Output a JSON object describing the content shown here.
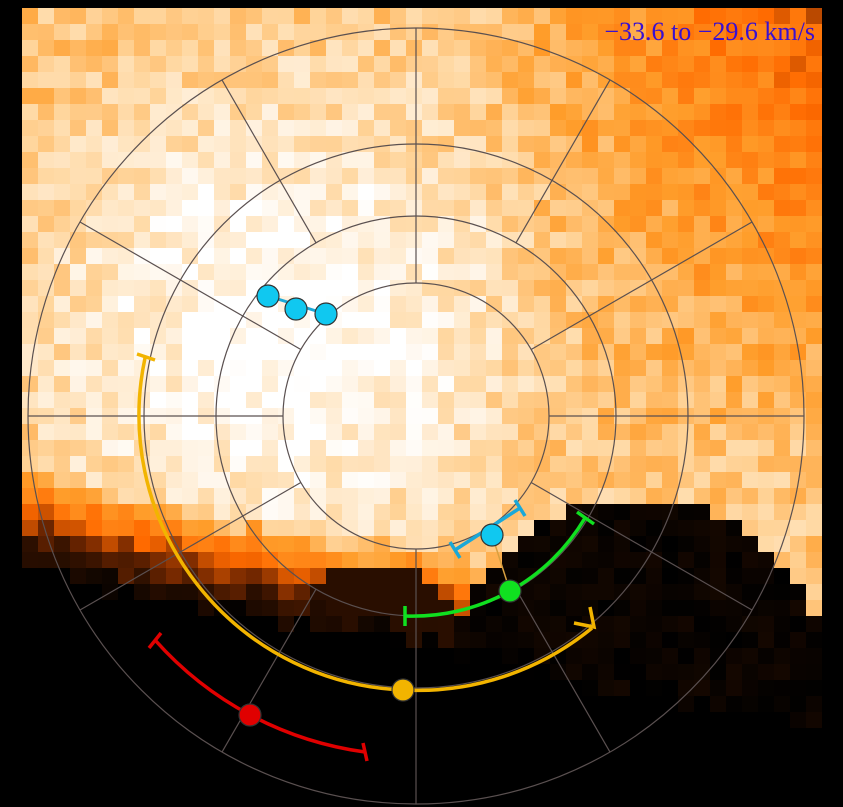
{
  "label": "−33.6 to −29.6 km/s"
}
